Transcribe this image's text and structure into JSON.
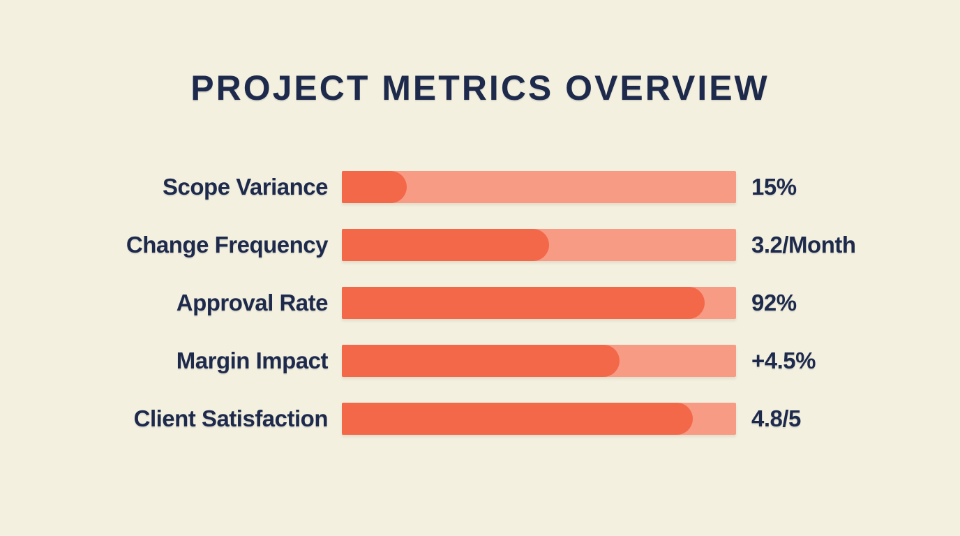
{
  "title": "PROJECT METRICS OVERVIEW",
  "colors": {
    "background": "#F3F0DF",
    "text": "#1E2A4C",
    "bar_fill": "#F4684A",
    "bar_track": "#F89B84"
  },
  "chart_data": {
    "type": "bar",
    "orientation": "horizontal",
    "title": "PROJECT METRICS OVERVIEW",
    "categories": [
      "Scope Variance",
      "Change Frequency",
      "Approval Rate",
      "Margin Impact",
      "Client Satisfaction"
    ],
    "value_labels": [
      "15%",
      "3.2/Month",
      "92%",
      "+4.5%",
      "4.8/5"
    ],
    "fill_percentages": [
      16.5,
      52.5,
      92,
      70.5,
      89
    ],
    "legend": "none",
    "grid": false,
    "rows": [
      {
        "label": "Scope Variance",
        "value": "15%",
        "fill_percent": 16.5
      },
      {
        "label": "Change Frequency",
        "value": "3.2/Month",
        "fill_percent": 52.5
      },
      {
        "label": "Approval Rate",
        "value": "92%",
        "fill_percent": 92
      },
      {
        "label": "Margin Impact",
        "value": "+4.5%",
        "fill_percent": 70.5
      },
      {
        "label": "Client Satisfaction",
        "value": "4.8/5",
        "fill_percent": 89
      }
    ]
  }
}
